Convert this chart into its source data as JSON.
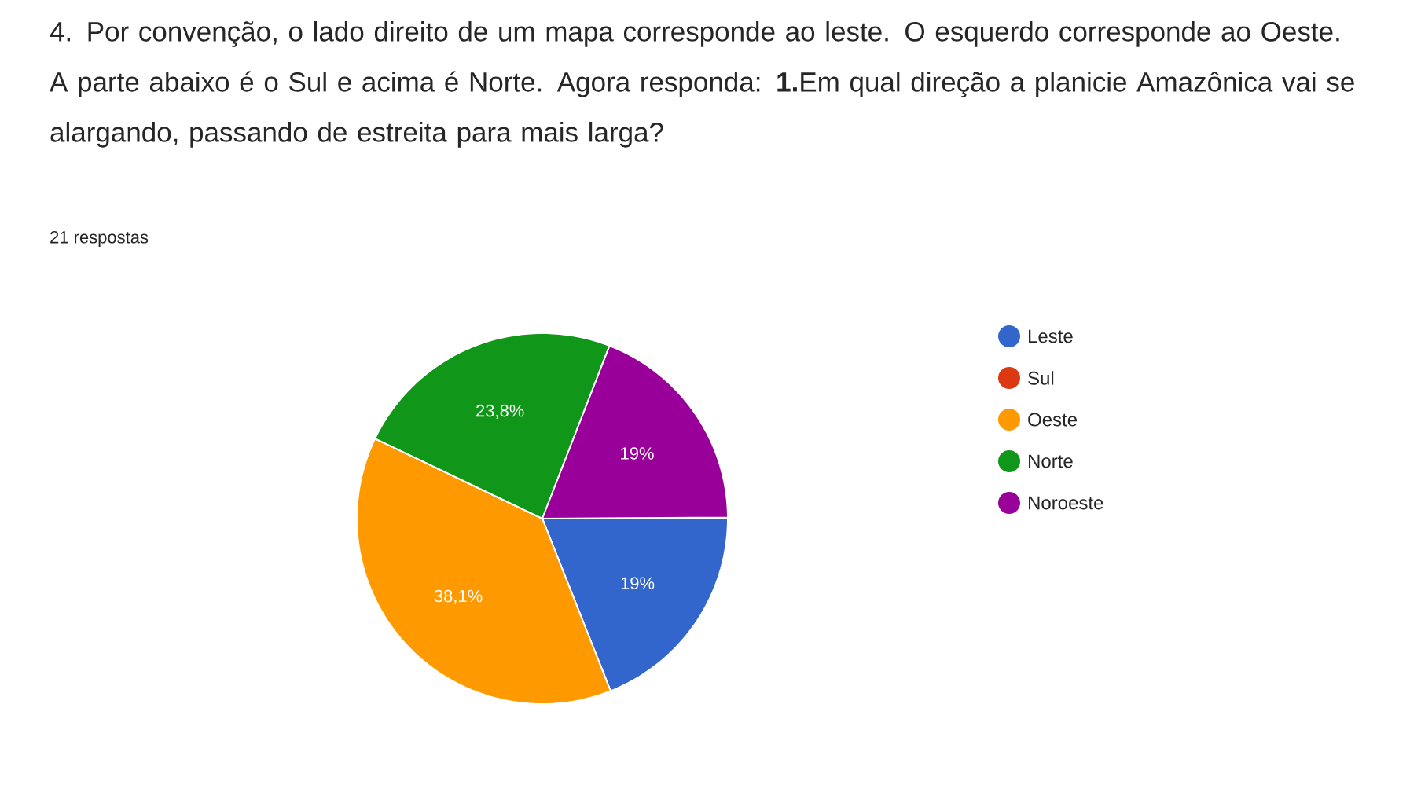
{
  "chart_data": {
    "type": "pie",
    "title": "4. Por convenção, o lado direito de um mapa corresponde ao leste. O esquerdo corresponde ao Oeste. A parte abaixo é o Sul e acima é Norte. Agora responda: **1.**Em qual direção a planicie Amazônica vai se alargando, passando de estreita para mais larga?",
    "subtitle": "21 respostas",
    "categories": [
      "Leste",
      "Sul",
      "Oeste",
      "Norte",
      "Noroeste"
    ],
    "values": [
      19,
      0,
      38.1,
      23.8,
      19
    ],
    "value_labels": [
      "19%",
      null,
      "38,1%",
      "23,8%",
      "19%"
    ],
    "colors": [
      "#3366cc",
      "#dc3912",
      "#ff9900",
      "#109618",
      "#990099"
    ],
    "legend": "right"
  }
}
